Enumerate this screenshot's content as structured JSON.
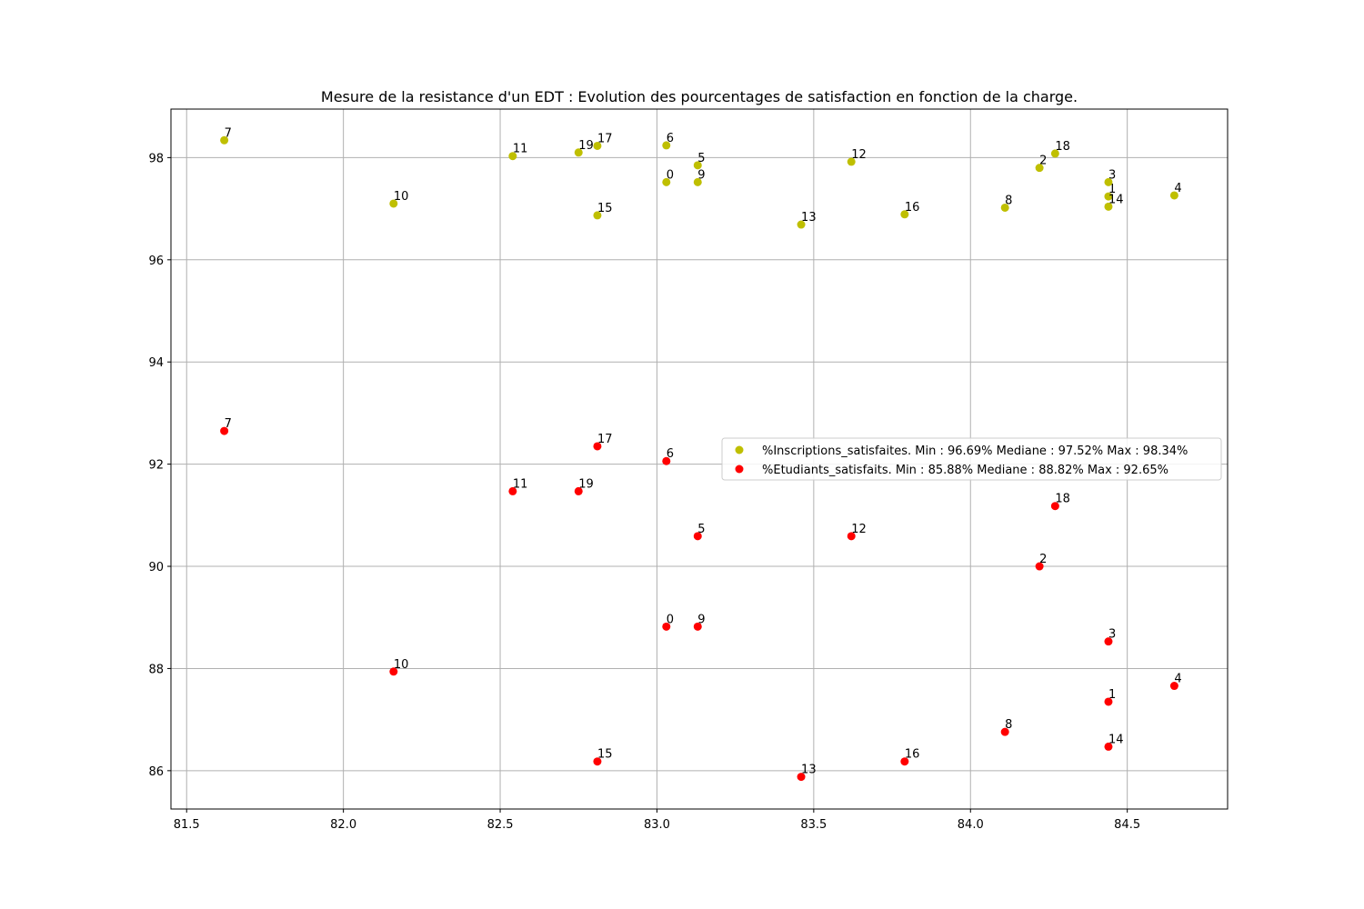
{
  "chart_data": {
    "type": "scatter",
    "title": "Mesure de la resistance d'un EDT : Evolution des pourcentages de satisfaction en fonction de la charge.",
    "xlabel": "",
    "ylabel": "",
    "xlim": [
      81.45,
      84.82
    ],
    "ylim": [
      85.25,
      98.95
    ],
    "grid": true,
    "legend_position": "center-right",
    "x_ticks": [
      81.5,
      82.0,
      82.5,
      83.0,
      83.5,
      84.0,
      84.5
    ],
    "x_tick_labels": [
      "81.5",
      "82.0",
      "82.5",
      "83.0",
      "83.5",
      "84.0",
      "84.5"
    ],
    "y_ticks": [
      86,
      88,
      90,
      92,
      94,
      96,
      98
    ],
    "y_tick_labels": [
      "86",
      "88",
      "90",
      "92",
      "94",
      "96",
      "98"
    ],
    "point_labels": [
      "0",
      "1",
      "2",
      "3",
      "4",
      "5",
      "6",
      "7",
      "8",
      "9",
      "10",
      "11",
      "12",
      "13",
      "14",
      "15",
      "16",
      "17",
      "18",
      "19"
    ],
    "x": [
      83.03,
      84.44,
      84.22,
      84.44,
      84.65,
      83.13,
      83.03,
      81.62,
      84.11,
      83.13,
      82.16,
      82.54,
      83.62,
      83.46,
      84.44,
      82.81,
      83.79,
      82.81,
      84.27,
      82.75
    ],
    "series": [
      {
        "name": "%Inscriptions_satisfaites. Min : 96.69% Mediane : 97.52% Max : 98.34%",
        "color": "#bfbf00",
        "values": [
          97.52,
          97.24,
          97.8,
          97.52,
          97.26,
          97.85,
          98.24,
          98.34,
          97.02,
          97.52,
          97.1,
          98.03,
          97.92,
          96.69,
          97.04,
          96.87,
          96.89,
          98.23,
          98.08,
          98.1
        ]
      },
      {
        "name": "%Etudiants_satisfaits. Min : 85.88% Mediane : 88.82% Max : 92.65%",
        "color": "#ff0000",
        "values": [
          88.82,
          87.35,
          90.0,
          88.53,
          87.66,
          90.59,
          92.06,
          92.65,
          86.76,
          88.82,
          87.94,
          91.47,
          90.59,
          85.88,
          86.47,
          86.18,
          86.18,
          92.35,
          91.18,
          91.47
        ]
      }
    ]
  }
}
